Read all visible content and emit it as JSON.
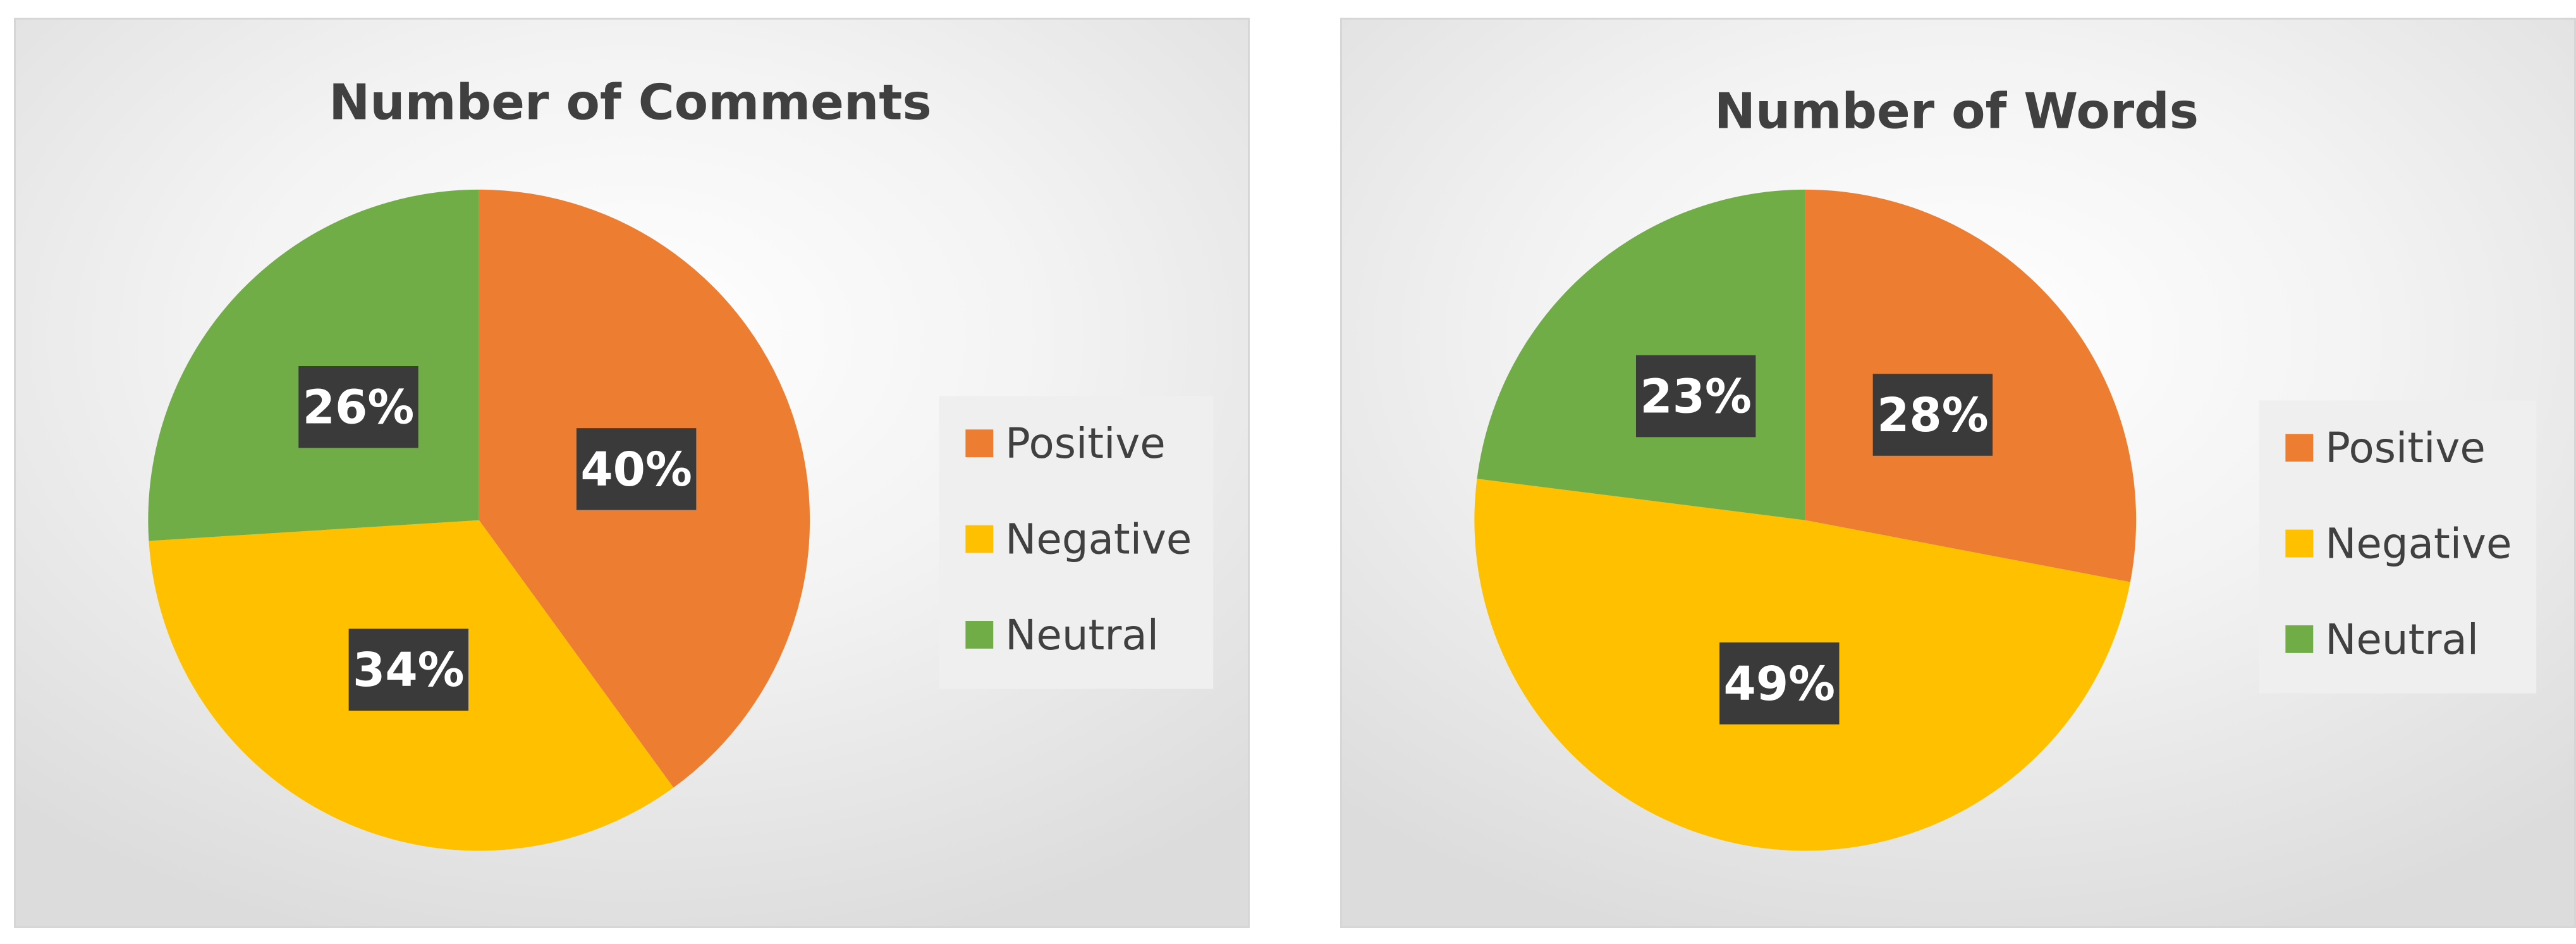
{
  "chart_data": [
    {
      "type": "pie",
      "title": "Number of Comments",
      "categories": [
        "Positive",
        "Negative",
        "Neutral"
      ],
      "values": [
        40,
        34,
        26
      ],
      "data_labels": [
        "40%",
        "34%",
        "26%"
      ],
      "colors": [
        "#ed7d31",
        "#ffc000",
        "#70ad47"
      ],
      "legend_position": "right"
    },
    {
      "type": "pie",
      "title": "Number of Words",
      "categories": [
        "Positive",
        "Negative",
        "Neutral"
      ],
      "values": [
        28,
        49,
        23
      ],
      "data_labels": [
        "28%",
        "49%",
        "23%"
      ],
      "colors": [
        "#ed7d31",
        "#ffc000",
        "#70ad47"
      ],
      "legend_position": "right"
    }
  ]
}
